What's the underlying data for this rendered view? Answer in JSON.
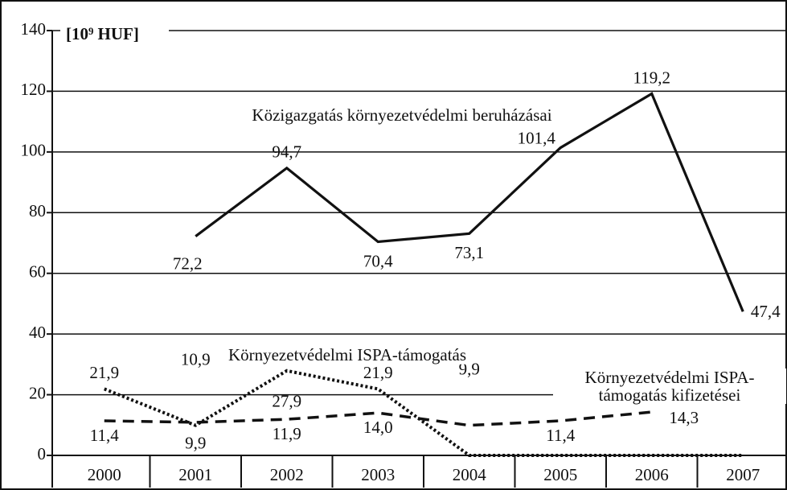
{
  "chart_data": {
    "type": "line",
    "y_label": "[10⁹ HUF]",
    "categories": [
      "2000",
      "2001",
      "2002",
      "2003",
      "2004",
      "2005",
      "2006",
      "2007"
    ],
    "series": [
      {
        "name": "Közigazgatás környezetvédelmi beruházásai",
        "color": "#111111",
        "style": "solid",
        "values": [
          null,
          72.2,
          94.7,
          70.4,
          73.1,
          101.4,
          119.2,
          47.4
        ],
        "value_labels": [
          null,
          "72,2",
          "94,7",
          "70,4",
          "73,1",
          "101,4",
          "119,2",
          "47,4"
        ]
      },
      {
        "name": "Környezetvédelmi ISPA-támogatás",
        "color": "#111111",
        "style": "dotted",
        "values": [
          21.9,
          9.9,
          27.9,
          21.9,
          0,
          0,
          0,
          0
        ],
        "value_labels": [
          "21,9",
          "9,9",
          "27,9",
          "21,9",
          null,
          null,
          null,
          null
        ]
      },
      {
        "name": "Környezetvédelmi ISPA-támogatás kifizetései",
        "color": "#111111",
        "style": "dashed",
        "values": [
          11.4,
          10.9,
          11.9,
          14.0,
          9.9,
          11.4,
          14.3,
          null
        ],
        "value_labels": [
          "11,4",
          "10,9",
          "11,9",
          "14,0",
          "9,9",
          "11,4",
          "14,3",
          null
        ]
      }
    ],
    "ylim": [
      0,
      140
    ],
    "yticks": [
      0,
      20,
      40,
      60,
      80,
      100,
      120,
      140
    ],
    "grid": true
  }
}
